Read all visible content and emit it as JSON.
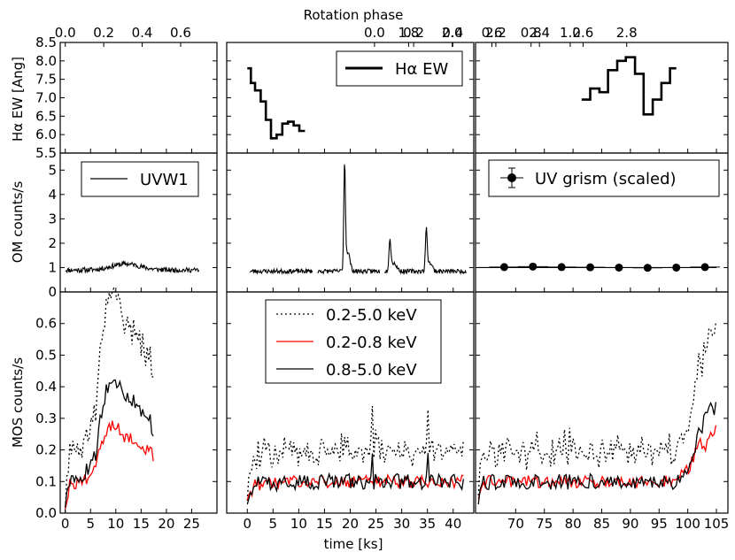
{
  "chart_data": {
    "type": "line",
    "top_axis_label": "Rotation phase",
    "bottom_axis_label": "time [ks]",
    "colors": {
      "total": "#000000",
      "soft": "#ff0000",
      "hard": "#000000",
      "om": "#000000",
      "halpha": "#000000"
    },
    "row_ylabels": [
      "Hα EW [Ang]",
      "OM counts/s",
      "MOS counts/s"
    ],
    "row_ylims": [
      [
        5.5,
        8.5
      ],
      [
        0,
        5.7
      ],
      [
        0,
        0.7
      ]
    ],
    "row_yticks": [
      [
        "5.5",
        "6.0",
        "6.5",
        "7.0",
        "7.5",
        "8.0",
        "8.5"
      ],
      [
        "0",
        "1",
        "2",
        "3",
        "4",
        "5"
      ],
      [
        "0.0",
        "0.1",
        "0.2",
        "0.3",
        "0.4",
        "0.5",
        "0.6"
      ]
    ],
    "col_xlims": [
      [
        -1,
        30
      ],
      [
        -4,
        44
      ],
      [
        63,
        107
      ]
    ],
    "col_xticks": [
      [
        "0",
        "5",
        "10",
        "15",
        "20",
        "25"
      ],
      [
        "0",
        "5",
        "10",
        "15",
        "20",
        "25",
        "30",
        "35",
        "40"
      ],
      [
        "70",
        "75",
        "80",
        "85",
        "90",
        "95",
        "100",
        "105"
      ]
    ],
    "col_phase_ticks": [
      {
        "values": [
          0.0,
          0.2,
          0.4,
          0.6
        ],
        "labels": [
          "0.0",
          "0.2",
          "0.4",
          "0.6"
        ],
        "t0": 0,
        "k": 0.0263
      },
      {
        "values": [
          0.0,
          0.2,
          0.4,
          0.6,
          0.8,
          1.0
        ],
        "labels": [
          "0.0",
          "0.2",
          "0.4",
          "0.6",
          "0.8",
          "1.0"
        ],
        "t0": 0.65,
        "k": 0.0263
      },
      {
        "values": [
          1.8,
          2.0,
          2.2,
          2.4,
          2.6,
          2.8
        ],
        "labels": [
          "1.8",
          "2.0",
          "2.2",
          "2.4",
          "2.6",
          "2.8"
        ],
        "t0": -0.45,
        "k": 0.0263
      }
    ],
    "legends": {
      "halpha": "Hα EW",
      "om": "UVW1",
      "grism": "UV grism (scaled)",
      "mos": [
        "0.2-5.0 keV",
        "0.2-0.8 keV",
        "0.8-5.0 keV"
      ]
    },
    "halpha": [
      {
        "x": [
          0.0,
          0.7,
          1.5,
          2.6,
          3.6,
          4.6,
          5.7,
          6.8,
          7.9,
          9.0,
          10.1
        ],
        "y": [
          7.8,
          7.4,
          7.2,
          6.9,
          6.4,
          5.9,
          6.0,
          6.3,
          6.35,
          6.25,
          6.1
        ],
        "end": 11.2
      },
      {
        "x": [
          81.5,
          83.0,
          84.6,
          86.1,
          87.7,
          89.2,
          90.8,
          92.3,
          93.9,
          95.4,
          96.9
        ],
        "y": [
          6.95,
          7.25,
          7.15,
          7.75,
          8.0,
          8.1,
          7.65,
          6.55,
          6.95,
          7.4,
          7.8
        ],
        "end": 98.0
      }
    ],
    "om": [
      {
        "xrange": [
          0,
          26.5
        ],
        "base": 0.9,
        "noise": 0.1,
        "seed": 11,
        "bumps": [
          {
            "c": 12,
            "w": 4,
            "h": 0.25
          }
        ]
      },
      {
        "xrange": [
          0.5,
          42.5
        ],
        "base": 0.85,
        "noise": 0.09,
        "seed": 23,
        "gaps": [
          [
            12.7,
            13.6
          ],
          [
            25.8,
            26.6
          ]
        ],
        "bumps": [
          {
            "c": 18.9,
            "w": 0.22,
            "h": 4.3
          },
          {
            "c": 19.5,
            "w": 0.6,
            "h": 0.8
          },
          {
            "c": 27.7,
            "w": 0.25,
            "h": 1.2
          },
          {
            "c": 28.4,
            "w": 0.8,
            "h": 0.35
          },
          {
            "c": 34.8,
            "w": 0.25,
            "h": 1.7
          },
          {
            "c": 35.5,
            "w": 0.6,
            "h": 0.35
          }
        ]
      },
      {
        "xrange": [
          63.5,
          105
        ],
        "base": 1.0,
        "noise": 0.0,
        "seed": 5
      }
    ],
    "grism": {
      "x": [
        68.0,
        73.0,
        78.0,
        83.0,
        88.0,
        93.0,
        98.0,
        103.0
      ],
      "y": [
        1.02,
        1.04,
        1.02,
        1.01,
        1.0,
        0.99,
        1.0,
        1.02
      ],
      "xerr": 2.6,
      "yerr": 0.05,
      "legend_point": {
        "y": 4.7
      }
    },
    "mos_keyframes": [
      {
        "hard": [
          [
            0,
            0.03
          ],
          [
            1,
            0.1
          ],
          [
            2,
            0.09
          ],
          [
            3.5,
            0.12
          ],
          [
            5,
            0.15
          ],
          [
            6,
            0.18
          ],
          [
            7,
            0.3
          ],
          [
            8,
            0.38
          ],
          [
            9,
            0.43
          ],
          [
            10,
            0.41
          ],
          [
            11,
            0.39
          ],
          [
            12,
            0.38
          ],
          [
            13,
            0.36
          ],
          [
            14,
            0.34
          ],
          [
            15,
            0.32
          ],
          [
            16,
            0.33
          ],
          [
            17,
            0.28
          ],
          [
            17.5,
            0.26
          ]
        ],
        "soft": [
          [
            0,
            0.03
          ],
          [
            1,
            0.1
          ],
          [
            2,
            0.09
          ],
          [
            3.5,
            0.1
          ],
          [
            5,
            0.12
          ],
          [
            6,
            0.16
          ],
          [
            7,
            0.2
          ],
          [
            8,
            0.25
          ],
          [
            9,
            0.27
          ],
          [
            10,
            0.28
          ],
          [
            11,
            0.25
          ],
          [
            12,
            0.24
          ],
          [
            13,
            0.24
          ],
          [
            14,
            0.23
          ],
          [
            15,
            0.21
          ],
          [
            16,
            0.2
          ],
          [
            17,
            0.19
          ],
          [
            17.5,
            0.17
          ]
        ],
        "xrange": [
          0,
          17.5
        ],
        "step": 0.3,
        "seed": 31
      },
      {
        "hard": [
          [
            0,
            0.04
          ],
          [
            1.5,
            0.09
          ],
          [
            10,
            0.1
          ],
          [
            20,
            0.1
          ],
          [
            30,
            0.1
          ],
          [
            42,
            0.1
          ]
        ],
        "soft": [
          [
            0,
            0.04
          ],
          [
            1.5,
            0.09
          ],
          [
            10,
            0.1
          ],
          [
            20,
            0.1
          ],
          [
            30,
            0.1
          ],
          [
            42,
            0.1
          ]
        ],
        "spikes": [
          {
            "x": 24.3,
            "h": 0.08
          },
          {
            "x": 35.0,
            "h": 0.08
          }
        ],
        "xrange": [
          0,
          42
        ],
        "step": 0.3,
        "seed": 47
      },
      {
        "hard": [
          [
            63.5,
            0.04
          ],
          [
            64.5,
            0.1
          ],
          [
            75,
            0.1
          ],
          [
            90,
            0.1
          ],
          [
            98,
            0.1
          ],
          [
            100,
            0.15
          ],
          [
            101,
            0.2
          ],
          [
            102,
            0.25
          ],
          [
            103,
            0.3
          ],
          [
            104,
            0.34
          ],
          [
            105,
            0.33
          ]
        ],
        "soft": [
          [
            63.5,
            0.04
          ],
          [
            64.5,
            0.1
          ],
          [
            75,
            0.1
          ],
          [
            90,
            0.1
          ],
          [
            98,
            0.1
          ],
          [
            100,
            0.14
          ],
          [
            101,
            0.17
          ],
          [
            102,
            0.24
          ],
          [
            103,
            0.2
          ],
          [
            104,
            0.25
          ],
          [
            105,
            0.26
          ]
        ],
        "xrange": [
          63.5,
          105
        ],
        "step": 0.3,
        "seed": 59
      }
    ]
  }
}
